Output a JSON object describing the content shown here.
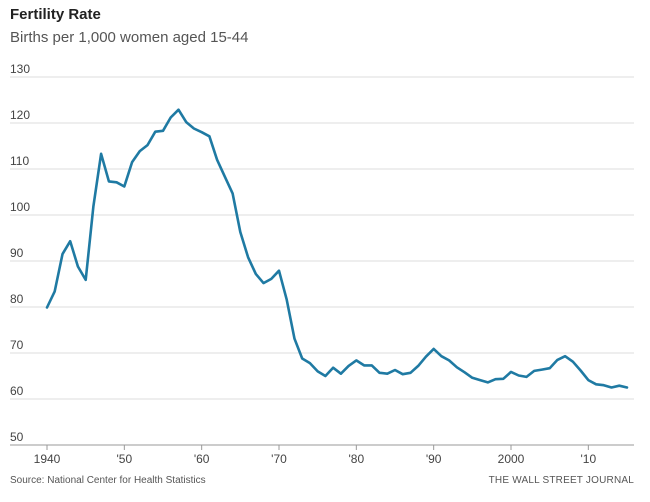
{
  "header": {
    "title": "Fertility Rate",
    "subtitle": "Births per 1,000 women aged 15-44"
  },
  "footer": {
    "source": "Source: National Center for Health Statistics",
    "credit": "THE WALL STREET JOURNAL"
  },
  "colors": {
    "line": "#1f7aa3",
    "grid": "#dddddd",
    "baseline": "#999999"
  },
  "chart_data": {
    "type": "line",
    "title": "Fertility Rate",
    "subtitle": "Births per 1,000 women aged 15-44",
    "xlabel": "",
    "ylabel": "",
    "xlim": [
      1940,
      2015
    ],
    "ylim": [
      50,
      130
    ],
    "grid": true,
    "y_ticks": [
      {
        "value": 130,
        "label": "130"
      },
      {
        "value": 120,
        "label": "120"
      },
      {
        "value": 110,
        "label": "110"
      },
      {
        "value": 100,
        "label": "100"
      },
      {
        "value": 90,
        "label": "90"
      },
      {
        "value": 80,
        "label": "80"
      },
      {
        "value": 70,
        "label": "70"
      },
      {
        "value": 60,
        "label": "60"
      },
      {
        "value": 50,
        "label": "50"
      }
    ],
    "x_ticks": [
      {
        "value": 1940,
        "label": "1940"
      },
      {
        "value": 1950,
        "label": "'50"
      },
      {
        "value": 1960,
        "label": "'60"
      },
      {
        "value": 1970,
        "label": "'70"
      },
      {
        "value": 1980,
        "label": "'80"
      },
      {
        "value": 1990,
        "label": "'90"
      },
      {
        "value": 2000,
        "label": "2000"
      },
      {
        "value": 2010,
        "label": "'10"
      }
    ],
    "series": [
      {
        "x": [
          1940,
          1941,
          1942,
          1943,
          1944,
          1945,
          1946,
          1947,
          1948,
          1949,
          1950,
          1951,
          1952,
          1953,
          1954,
          1955,
          1956,
          1957,
          1958,
          1959,
          1960,
          1961,
          1962,
          1963,
          1964,
          1965,
          1966,
          1967,
          1968,
          1969,
          1970,
          1971,
          1972,
          1973,
          1974,
          1975,
          1976,
          1977,
          1978,
          1979,
          1980,
          1981,
          1982,
          1983,
          1984,
          1985,
          1986,
          1987,
          1988,
          1989,
          1990,
          1991,
          1992,
          1993,
          1994,
          1995,
          1996,
          1997,
          1998,
          1999,
          2000,
          2001,
          2002,
          2003,
          2004,
          2005,
          2006,
          2007,
          2008,
          2009,
          2010,
          2011,
          2012,
          2013,
          2014,
          2015
        ],
        "values": [
          79.9,
          83.4,
          91.5,
          94.3,
          88.8,
          85.9,
          101.9,
          113.3,
          107.3,
          107.1,
          106.2,
          111.5,
          113.9,
          115.2,
          118.1,
          118.3,
          121.2,
          122.9,
          120.2,
          118.8,
          118.0,
          117.1,
          112.0,
          108.3,
          104.7,
          96.3,
          90.8,
          87.2,
          85.2,
          86.1,
          87.9,
          81.6,
          73.1,
          68.8,
          67.8,
          66.0,
          65.0,
          66.8,
          65.5,
          67.2,
          68.4,
          67.3,
          67.3,
          65.7,
          65.5,
          66.3,
          65.4,
          65.7,
          67.2,
          69.2,
          70.9,
          69.3,
          68.4,
          66.9,
          65.8,
          64.6,
          64.1,
          63.6,
          64.3,
          64.4,
          65.9,
          65.1,
          64.8,
          66.1,
          66.4,
          66.7,
          68.5,
          69.3,
          68.1,
          66.2,
          64.1,
          63.2,
          63.0,
          62.5,
          62.9,
          62.5
        ]
      }
    ]
  }
}
